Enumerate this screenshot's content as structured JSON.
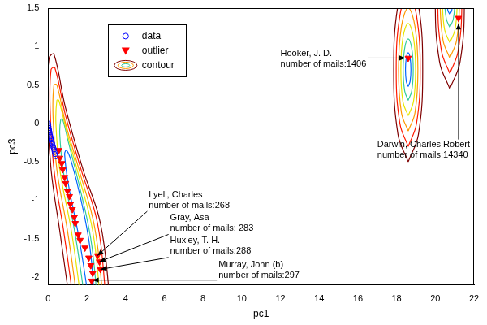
{
  "chart_data": {
    "type": "scatter",
    "x_label": "pc1",
    "y_label": "pc3",
    "xlim": [
      0,
      22
    ],
    "xticks": [
      0,
      2,
      4,
      6,
      8,
      10,
      12,
      14,
      16,
      18,
      20,
      22
    ],
    "ylim": [
      -2.1,
      1.5
    ],
    "yticks": [
      -2,
      -1.5,
      -1,
      -0.5,
      0,
      0.5,
      1,
      1.5
    ],
    "grid": false,
    "legend": "upper left",
    "series": [
      {
        "name": "data",
        "type": "scatter",
        "marker": "circle",
        "color": "#0000ff",
        "x": [
          0,
          0.01,
          0.02,
          0.03,
          0.05,
          0.06,
          0.08,
          0.1,
          0.12,
          0.14,
          0.16,
          0.18,
          0.2,
          0.22,
          0.25,
          0.28,
          0.3,
          0.33,
          0.36,
          0.4
        ],
        "values": [
          0,
          -0.02,
          -0.04,
          -0.06,
          -0.08,
          -0.1,
          -0.12,
          -0.15,
          -0.17,
          -0.19,
          -0.21,
          -0.23,
          -0.25,
          -0.27,
          -0.3,
          -0.32,
          -0.34,
          -0.37,
          -0.4,
          -0.43
        ]
      },
      {
        "name": "outlier",
        "type": "scatter",
        "marker": "triangle-down",
        "color": "#ff0000",
        "x": [
          0.55,
          0.6,
          0.7,
          0.75,
          0.85,
          0.9,
          1.0,
          1.1,
          1.15,
          1.25,
          1.35,
          1.4,
          1.55,
          1.65,
          1.9,
          2.1,
          2.2,
          2.3,
          2.25,
          2.55,
          2.65,
          2.7,
          18.6,
          21.2
        ],
        "values": [
          -0.35,
          -0.45,
          -0.52,
          -0.6,
          -0.7,
          -0.78,
          -0.88,
          -0.95,
          -1.05,
          -1.12,
          -1.22,
          -1.3,
          -1.45,
          -1.52,
          -1.62,
          -1.75,
          -1.85,
          -1.95,
          -2.05,
          -1.72,
          -1.8,
          -1.9,
          0.85,
          1.37
        ]
      },
      {
        "name": "contour",
        "type": "contour",
        "lines": [
          {
            "color": "#7f0000",
            "x": [
              1.1,
              0.6,
              0.15,
              -0.05,
              0.05,
              0.3,
              0.9,
              1.8,
              2.7,
              3.2
            ],
            "values": [
              -2.3,
              -1.4,
              -0.6,
              0.3,
              0.85,
              0.9,
              0.2,
              -0.6,
              -1.3,
              -2.3
            ]
          },
          {
            "color": "#ff1a00",
            "x": [
              1.3,
              0.8,
              0.3,
              0.1,
              0.15,
              0.35,
              0.9,
              1.7,
              2.55,
              3.0
            ],
            "values": [
              -2.3,
              -1.4,
              -0.6,
              0.2,
              0.7,
              0.72,
              0.1,
              -0.6,
              -1.3,
              -2.3
            ]
          },
          {
            "color": "#ff9900",
            "x": [
              1.5,
              1.0,
              0.45,
              0.25,
              0.3,
              0.45,
              0.9,
              1.65,
              2.4,
              2.85
            ],
            "values": [
              -2.3,
              -1.4,
              -0.6,
              0.1,
              0.5,
              0.5,
              0.0,
              -0.65,
              -1.35,
              -2.3
            ]
          },
          {
            "color": "#e6e600",
            "x": [
              1.7,
              1.2,
              0.6,
              0.4,
              0.45,
              0.55,
              0.95,
              1.6,
              2.3,
              2.7
            ],
            "values": [
              -2.3,
              -1.4,
              -0.6,
              0.0,
              0.3,
              0.3,
              -0.1,
              -0.7,
              -1.4,
              -2.3
            ]
          },
          {
            "color": "#33cc99",
            "x": [
              1.9,
              1.4,
              0.8,
              0.6,
              0.65,
              0.75,
              1.05,
              1.6,
              2.2,
              2.55
            ],
            "values": [
              -2.3,
              -1.45,
              -0.65,
              -0.15,
              0.05,
              0.05,
              -0.25,
              -0.8,
              -1.5,
              -2.3
            ]
          },
          {
            "color": "#0066ff",
            "x": [
              2.1,
              1.6,
              1.05,
              0.85,
              0.95,
              1.2,
              1.7,
              2.15,
              2.4
            ],
            "values": [
              -2.3,
              -1.5,
              -0.8,
              -0.4,
              -0.35,
              -0.5,
              -1.0,
              -1.6,
              -2.3
            ]
          },
          {
            "color": "#7f0000",
            "x": [
              18.6,
              19.13,
              19.35,
              19.13,
              18.6,
              18.07,
              17.85,
              18.07,
              18.6
            ],
            "values": [
              -0.5,
              -0.14,
              0.7,
              1.54,
              1.9,
              1.54,
              0.7,
              -0.14,
              -0.5
            ]
          },
          {
            "color": "#ff1a00",
            "x": [
              18.6,
              19.03,
              19.22,
              19.03,
              18.6,
              18.17,
              17.98,
              18.17,
              18.6
            ],
            "values": [
              -0.3,
              0.0,
              0.7,
              1.4,
              1.7,
              1.4,
              0.7,
              0.0,
              -0.3
            ]
          },
          {
            "color": "#ff9900",
            "x": [
              18.6,
              18.95,
              19.1,
              18.95,
              18.6,
              18.25,
              18.1,
              18.25,
              18.6
            ],
            "values": [
              -0.1,
              0.14,
              0.7,
              1.26,
              1.5,
              1.26,
              0.7,
              0.14,
              -0.1
            ]
          },
          {
            "color": "#e6e600",
            "x": [
              18.6,
              18.87,
              18.98,
              18.87,
              18.6,
              18.33,
              18.22,
              18.33,
              18.6
            ],
            "values": [
              0.1,
              0.28,
              0.7,
              1.12,
              1.3,
              1.12,
              0.7,
              0.28,
              0.1
            ]
          },
          {
            "color": "#33cc99",
            "x": [
              18.6,
              18.78,
              18.86,
              18.78,
              18.6,
              18.42,
              18.34,
              18.42,
              18.6
            ],
            "values": [
              0.3,
              0.42,
              0.7,
              0.98,
              1.1,
              0.98,
              0.7,
              0.42,
              0.3
            ]
          },
          {
            "color": "#0066ff",
            "x": [
              18.6,
              18.7,
              18.74,
              18.7,
              18.6,
              18.5,
              18.46,
              18.5,
              18.6
            ],
            "values": [
              0.48,
              0.55,
              0.7,
              0.85,
              0.92,
              0.85,
              0.7,
              0.55,
              0.48
            ]
          },
          {
            "color": "#7f0000",
            "x": [
              20.75,
              21.28,
              21.5,
              21.28,
              20.75,
              20.22,
              20.0,
              20.22,
              20.75
            ],
            "values": [
              0.45,
              0.8,
              1.6,
              2.4,
              2.75,
              2.4,
              1.6,
              0.8,
              0.45
            ]
          },
          {
            "color": "#ff1a00",
            "x": [
              20.75,
              21.18,
              21.37,
              21.18,
              20.75,
              20.32,
              20.13,
              20.32,
              20.75
            ],
            "values": [
              0.65,
              0.94,
              1.6,
              2.26,
              2.55,
              2.26,
              1.6,
              0.94,
              0.65
            ]
          },
          {
            "color": "#ff9900",
            "x": [
              20.75,
              21.1,
              21.25,
              21.1,
              20.75,
              20.4,
              20.25,
              20.4,
              20.75
            ],
            "values": [
              0.85,
              1.08,
              1.6,
              2.12,
              2.35,
              2.12,
              1.6,
              1.08,
              0.85
            ]
          },
          {
            "color": "#e6e600",
            "x": [
              20.75,
              21.02,
              21.13,
              21.02,
              20.75,
              20.48,
              20.37,
              20.48,
              20.75
            ],
            "values": [
              1.05,
              1.22,
              1.6,
              1.98,
              2.15,
              1.98,
              1.6,
              1.22,
              1.05
            ]
          },
          {
            "color": "#33cc99",
            "x": [
              20.75,
              20.93,
              21.01,
              20.93,
              20.75,
              20.57,
              20.49,
              20.57,
              20.75
            ],
            "values": [
              1.25,
              1.36,
              1.6,
              1.84,
              1.95,
              1.84,
              1.6,
              1.36,
              1.25
            ]
          },
          {
            "color": "#0066ff",
            "x": [
              20.75,
              20.85,
              20.89,
              20.85,
              20.75,
              20.65,
              20.61,
              20.65,
              20.75
            ],
            "values": [
              1.42,
              1.47,
              1.6,
              1.73,
              1.78,
              1.73,
              1.6,
              1.47,
              1.42
            ]
          }
        ]
      }
    ],
    "annotations": [
      {
        "text": [
          "Lyell, Charles",
          "number of mails:268"
        ],
        "x": 2.55,
        "y": -1.72,
        "text_x": 5.2,
        "text_y": -0.87
      },
      {
        "text": [
          "Gray, Asa",
          "number of mails: 283"
        ],
        "x": 2.65,
        "y": -1.8,
        "text_x": 6.3,
        "text_y": -1.17
      },
      {
        "text": [
          "Huxley, T. H.",
          "number of mails:288"
        ],
        "x": 2.7,
        "y": -1.9,
        "text_x": 6.3,
        "text_y": -1.47
      },
      {
        "text": [
          "Murray, John (b)",
          "number of mails:297"
        ],
        "x": 2.3,
        "y": -2.04,
        "text_x": 8.8,
        "text_y": -1.78
      },
      {
        "text": [
          "Hooker, J. D.",
          "number of mails:1406"
        ],
        "x": 18.45,
        "y": 0.85,
        "text_x": 12.0,
        "text_y": 0.97
      },
      {
        "text": [
          "Darwin, Charles Robert",
          "number of mails:14340"
        ],
        "x": 21.2,
        "y": 1.3,
        "text_x": 17.0,
        "text_y": -0.22
      }
    ]
  }
}
